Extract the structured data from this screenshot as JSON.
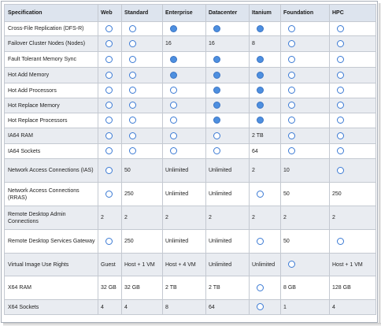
{
  "columns": [
    "Specification",
    "Web",
    "Standard",
    "Enterprise",
    "Datacenter",
    "Itanium",
    "Foundation",
    "HPC"
  ],
  "rows": [
    {
      "spec": "Cross-File Replication (DFS-R)",
      "cells": [
        {
          "type": "radio",
          "on": false
        },
        {
          "type": "radio",
          "on": false
        },
        {
          "type": "radio",
          "on": true
        },
        {
          "type": "radio",
          "on": true
        },
        {
          "type": "radio",
          "on": true
        },
        {
          "type": "radio",
          "on": false
        },
        {
          "type": "radio",
          "on": false
        }
      ]
    },
    {
      "spec": "Failover Cluster Nodes (Nodes)",
      "cells": [
        {
          "type": "radio",
          "on": false
        },
        {
          "type": "radio",
          "on": false
        },
        {
          "type": "text",
          "value": "16"
        },
        {
          "type": "text",
          "value": "16"
        },
        {
          "type": "text",
          "value": "8"
        },
        {
          "type": "radio",
          "on": false
        },
        {
          "type": "radio",
          "on": false
        }
      ]
    },
    {
      "spec": "Fault Tolerant Memory Sync",
      "cells": [
        {
          "type": "radio",
          "on": false
        },
        {
          "type": "radio",
          "on": false
        },
        {
          "type": "radio",
          "on": true
        },
        {
          "type": "radio",
          "on": true
        },
        {
          "type": "radio",
          "on": true
        },
        {
          "type": "radio",
          "on": false
        },
        {
          "type": "radio",
          "on": false
        }
      ]
    },
    {
      "spec": "Hot Add Memory",
      "cells": [
        {
          "type": "radio",
          "on": false
        },
        {
          "type": "radio",
          "on": false
        },
        {
          "type": "radio",
          "on": true
        },
        {
          "type": "radio",
          "on": true
        },
        {
          "type": "radio",
          "on": true
        },
        {
          "type": "radio",
          "on": false
        },
        {
          "type": "radio",
          "on": false
        }
      ]
    },
    {
      "spec": "Hot Add Processors",
      "cells": [
        {
          "type": "radio",
          "on": false
        },
        {
          "type": "radio",
          "on": false
        },
        {
          "type": "radio",
          "on": false
        },
        {
          "type": "radio",
          "on": true
        },
        {
          "type": "radio",
          "on": true
        },
        {
          "type": "radio",
          "on": false
        },
        {
          "type": "radio",
          "on": false
        }
      ]
    },
    {
      "spec": "Hot Replace Memory",
      "cells": [
        {
          "type": "radio",
          "on": false
        },
        {
          "type": "radio",
          "on": false
        },
        {
          "type": "radio",
          "on": false
        },
        {
          "type": "radio",
          "on": true
        },
        {
          "type": "radio",
          "on": true
        },
        {
          "type": "radio",
          "on": false
        },
        {
          "type": "radio",
          "on": false
        }
      ]
    },
    {
      "spec": "Hot Replace Processors",
      "cells": [
        {
          "type": "radio",
          "on": false
        },
        {
          "type": "radio",
          "on": false
        },
        {
          "type": "radio",
          "on": false
        },
        {
          "type": "radio",
          "on": true
        },
        {
          "type": "radio",
          "on": true
        },
        {
          "type": "radio",
          "on": false
        },
        {
          "type": "radio",
          "on": false
        }
      ]
    },
    {
      "spec": "IA64 RAM",
      "cells": [
        {
          "type": "radio",
          "on": false
        },
        {
          "type": "radio",
          "on": false
        },
        {
          "type": "radio",
          "on": false
        },
        {
          "type": "radio",
          "on": false
        },
        {
          "type": "text",
          "value": "2 TB"
        },
        {
          "type": "radio",
          "on": false
        },
        {
          "type": "radio",
          "on": false
        }
      ]
    },
    {
      "spec": "IA64 Sockets",
      "cells": [
        {
          "type": "radio",
          "on": false
        },
        {
          "type": "radio",
          "on": false
        },
        {
          "type": "radio",
          "on": false
        },
        {
          "type": "radio",
          "on": false
        },
        {
          "type": "text",
          "value": "64"
        },
        {
          "type": "radio",
          "on": false
        },
        {
          "type": "radio",
          "on": false
        }
      ]
    },
    {
      "spec": "Network Access Connections (IAS)",
      "cells": [
        {
          "type": "radio",
          "on": false
        },
        {
          "type": "text",
          "value": "50"
        },
        {
          "type": "text",
          "value": "Unlimited"
        },
        {
          "type": "text",
          "value": "Unlimited"
        },
        {
          "type": "text",
          "value": "2"
        },
        {
          "type": "text",
          "value": "10"
        },
        {
          "type": "radio",
          "on": false
        }
      ]
    },
    {
      "spec": "Network Access Connections (RRAS)",
      "cells": [
        {
          "type": "radio",
          "on": false
        },
        {
          "type": "text",
          "value": "250"
        },
        {
          "type": "text",
          "value": "Unlimited"
        },
        {
          "type": "text",
          "value": "Unlimited"
        },
        {
          "type": "radio",
          "on": false
        },
        {
          "type": "text",
          "value": "50"
        },
        {
          "type": "text",
          "value": "250"
        }
      ]
    },
    {
      "spec": "Remote Desktop Admin Connections",
      "cells": [
        {
          "type": "text",
          "value": "2"
        },
        {
          "type": "text",
          "value": "2"
        },
        {
          "type": "text",
          "value": "2"
        },
        {
          "type": "text",
          "value": "2"
        },
        {
          "type": "text",
          "value": "2"
        },
        {
          "type": "text",
          "value": "2"
        },
        {
          "type": "text",
          "value": "2"
        }
      ]
    },
    {
      "spec": "Remote Desktop Services Gateway",
      "cells": [
        {
          "type": "radio",
          "on": false
        },
        {
          "type": "text",
          "value": "250"
        },
        {
          "type": "text",
          "value": "Unlimited"
        },
        {
          "type": "text",
          "value": "Unlimited"
        },
        {
          "type": "radio",
          "on": false
        },
        {
          "type": "text",
          "value": "50"
        },
        {
          "type": "radio",
          "on": false
        }
      ]
    },
    {
      "spec": "Virtual Image Use Rights",
      "cells": [
        {
          "type": "text",
          "value": "Guest"
        },
        {
          "type": "text",
          "value": "Host + 1 VM"
        },
        {
          "type": "text",
          "value": "Host + 4 VM"
        },
        {
          "type": "text",
          "value": "Unlimited"
        },
        {
          "type": "text",
          "value": "Unlimited"
        },
        {
          "type": "radio",
          "on": false
        },
        {
          "type": "text",
          "value": "Host + 1 VM"
        }
      ]
    },
    {
      "spec": "X64 RAM",
      "cells": [
        {
          "type": "text",
          "value": "32 GB"
        },
        {
          "type": "text",
          "value": "32 GB"
        },
        {
          "type": "text",
          "value": "2 TB"
        },
        {
          "type": "text",
          "value": "2 TB"
        },
        {
          "type": "radio",
          "on": false
        },
        {
          "type": "text",
          "value": "8 GB"
        },
        {
          "type": "text",
          "value": "128 GB"
        }
      ]
    },
    {
      "spec": "X64 Sockets",
      "cells": [
        {
          "type": "text",
          "value": "4"
        },
        {
          "type": "text",
          "value": "4"
        },
        {
          "type": "text",
          "value": "8"
        },
        {
          "type": "text",
          "value": "64"
        },
        {
          "type": "radio",
          "on": false
        },
        {
          "type": "text",
          "value": "1"
        },
        {
          "type": "text",
          "value": "4"
        }
      ]
    }
  ],
  "colors": {
    "header_bg": "#dde4ee",
    "alt_row_bg": "#e9ecf1",
    "radio_on": "#4d8fe0",
    "radio_border": "#3b7ad4",
    "grid": "#c4c9d1"
  },
  "icons": {
    "radio_off": "radio-empty-icon",
    "radio_on": "radio-filled-icon"
  }
}
